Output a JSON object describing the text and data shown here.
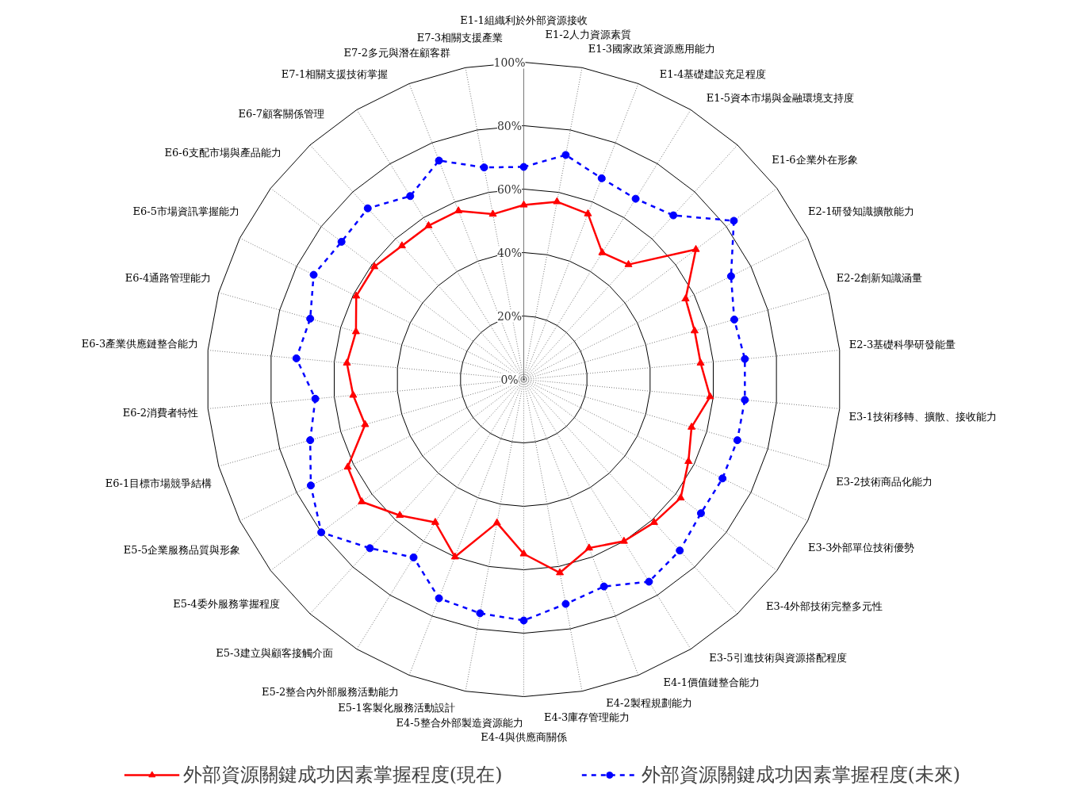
{
  "chart_data": {
    "type": "radar",
    "categories": [
      "E1-1組織利於外部資源接收",
      "E1-2人力資源素質",
      "E1-3國家政策資源應用能力",
      "E1-4基礎建設充足程度",
      "E1-5資本市場與金融環境支持度",
      "E1-6企業外在形象",
      "E2-1研發知識擴散能力",
      "E2-2創新知識涵量",
      "E2-3基礎科學研發能量",
      "E3-1技術移轉、擴散、接收能力",
      "E3-2技術商品化能力",
      "E3-3外部單位技術優勢",
      "E3-4外部技術完整多元性",
      "E3-5引進技術與資源搭配程度",
      "E4-1價值鏈整合能力",
      "E4-2製程規劃能力",
      "E4-3庫存管理能力",
      "E4-4與供應商關係",
      "E4-5整合外部製造資源能力",
      "E5-1客製化服務活動設計",
      "E5-2整合內外部服務活動能力",
      "E5-3建立與顧客接觸介面",
      "E5-4委外服務掌握程度",
      "E5-5企業服務品質與形象",
      "E6-1目標市場競爭結構",
      "E6-2消費者特性",
      "E6-3產業供應鏈整合能力",
      "E6-4通路管理能力",
      "E6-5市場資訊掌握能力",
      "E6-6支配市場與產品能力",
      "E6-7顧客關係管理",
      "E7-1相關支援技術掌握",
      "E7-2多元與潛在顧客群",
      "E7-3相關支援產業"
    ],
    "series": [
      {
        "name": "外部資源關鍵成功因素掌握程度(現在)",
        "color": "#ff0000",
        "marker": "triangle",
        "line_style": "solid",
        "values": [
          55,
          57,
          56,
          47,
          49,
          68,
          57,
          56,
          56,
          59,
          55,
          58,
          62,
          61,
          60,
          57,
          62,
          55,
          46,
          60,
          53,
          58,
          64,
          62,
          52,
          54,
          56,
          55,
          59,
          59,
          57,
          57,
          57,
          53
        ]
      },
      {
        "name": "外部資源關鍵成功因素掌握程度(未來)",
        "color": "#0000ff",
        "marker": "circle",
        "line_style": "dashed",
        "values": [
          67,
          72,
          68,
          67,
          70,
          83,
          73,
          69,
          70,
          70,
          70,
          70,
          70,
          73,
          75,
          70,
          72,
          76,
          75,
          74,
          66,
          72,
          80,
          75,
          70,
          66,
          72,
          70,
          74,
          72,
          73,
          68,
          74,
          68
        ]
      }
    ],
    "ylim": [
      0,
      100
    ],
    "yticks": [
      {
        "value": 0,
        "label": "0%"
      },
      {
        "value": 20,
        "label": "20%"
      },
      {
        "value": 40,
        "label": "40%"
      },
      {
        "value": 60,
        "label": "60%"
      },
      {
        "value": 80,
        "label": "80%"
      },
      {
        "value": 100,
        "label": "100%"
      }
    ],
    "grid": true,
    "legend": "bottom"
  }
}
